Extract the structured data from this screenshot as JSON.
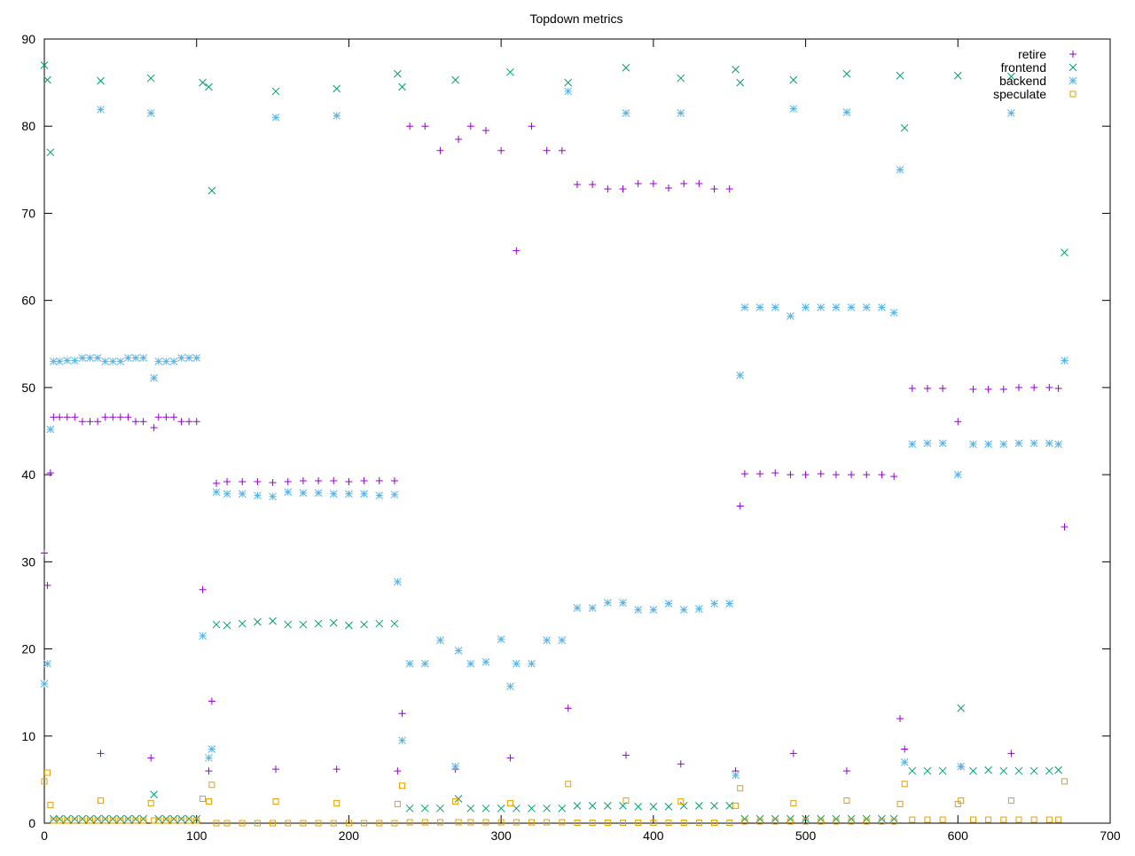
{
  "chart_data": {
    "type": "scatter",
    "title": "Topdown metrics",
    "x": [
      0,
      2,
      4,
      6,
      10,
      15,
      20,
      25,
      30,
      35,
      37,
      40,
      45,
      50,
      55,
      60,
      65,
      70,
      72,
      75,
      80,
      85,
      90,
      95,
      100,
      104,
      108,
      110,
      113,
      120,
      130,
      140,
      150,
      152,
      160,
      170,
      180,
      190,
      192,
      200,
      210,
      220,
      230,
      232,
      235,
      240,
      250,
      260,
      270,
      272,
      280,
      290,
      300,
      306,
      310,
      320,
      330,
      340,
      344,
      350,
      360,
      370,
      380,
      382,
      390,
      400,
      410,
      418,
      420,
      430,
      440,
      450,
      454,
      457,
      460,
      470,
      480,
      490,
      492,
      500,
      510,
      520,
      527,
      530,
      540,
      550,
      558,
      562,
      565,
      570,
      580,
      590,
      600,
      602,
      610,
      620,
      630,
      635,
      640,
      650,
      660,
      666,
      670
    ],
    "series": [
      {
        "name": "retire",
        "color": "#9400d3",
        "marker": "plus",
        "values": [
          31,
          27.3,
          40.2,
          46.6,
          46.6,
          46.6,
          46.6,
          46.1,
          46.1,
          46.1,
          8,
          46.6,
          46.6,
          46.6,
          46.6,
          46.1,
          46.1,
          7.5,
          45.4,
          46.6,
          46.6,
          46.6,
          46.1,
          46.1,
          46.1,
          26.8,
          6,
          14,
          39,
          39.2,
          39.2,
          39.2,
          39.1,
          6.2,
          39.2,
          39.3,
          39.3,
          39.3,
          6.2,
          39.2,
          39.3,
          39.3,
          39.3,
          6,
          12.6,
          80,
          80,
          77.2,
          6.2,
          78.5,
          80,
          79.5,
          77.2,
          7.5,
          65.7,
          80,
          77.2,
          77.2,
          13.2,
          73.3,
          73.3,
          72.8,
          72.8,
          7.8,
          73.4,
          73.4,
          72.9,
          6.8,
          73.4,
          73.4,
          72.8,
          72.8,
          6,
          36.4,
          40.1,
          40.1,
          40.2,
          40,
          8,
          40,
          40.1,
          40,
          6,
          40,
          40,
          40,
          39.8,
          12,
          8.5,
          49.9,
          49.9,
          49.9,
          46.1,
          6.5,
          49.8,
          49.8,
          49.8,
          8,
          50,
          50,
          50,
          49.9,
          34
        ]
      },
      {
        "name": "frontend",
        "color": "#009e73",
        "marker": "cross",
        "values": [
          87,
          85.3,
          77,
          0.5,
          0.5,
          0.5,
          0.5,
          0.5,
          0.5,
          0.5,
          85.2,
          0.5,
          0.5,
          0.5,
          0.5,
          0.5,
          0.5,
          85.5,
          3.3,
          0.5,
          0.5,
          0.5,
          0.5,
          0.5,
          0.5,
          85,
          84.5,
          72.6,
          22.8,
          22.7,
          22.9,
          23.1,
          23.2,
          84,
          22.8,
          22.8,
          22.9,
          23,
          84.3,
          22.7,
          22.8,
          22.9,
          22.9,
          86,
          84.5,
          1.7,
          1.7,
          1.7,
          85.3,
          2.8,
          1.7,
          1.7,
          1.7,
          86.2,
          1.7,
          1.7,
          1.7,
          1.7,
          85,
          2,
          2,
          2,
          2,
          86.7,
          1.9,
          1.9,
          1.9,
          85.5,
          2,
          2,
          2,
          2,
          86.5,
          85,
          0.5,
          0.5,
          0.5,
          0.5,
          85.3,
          0.5,
          0.5,
          0.5,
          86,
          0.5,
          0.5,
          0.5,
          0.5,
          85.8,
          79.8,
          6,
          6,
          6,
          85.8,
          13.2,
          6,
          6.1,
          6,
          85.7,
          6,
          6,
          6,
          6.1,
          65.5
        ]
      },
      {
        "name": "backend",
        "color": "#56b4e9",
        "marker": "star",
        "values": [
          16,
          18.3,
          45.2,
          53,
          53,
          53.1,
          53.1,
          53.4,
          53.4,
          53.4,
          81.9,
          53,
          53,
          53,
          53.4,
          53.4,
          53.4,
          81.5,
          51.1,
          53,
          53,
          53,
          53.4,
          53.4,
          53.4,
          21.5,
          7.5,
          8.5,
          38,
          37.8,
          37.8,
          37.6,
          37.5,
          81,
          38,
          37.9,
          37.9,
          37.8,
          81.2,
          37.8,
          37.8,
          37.6,
          37.7,
          27.7,
          9.5,
          18.3,
          18.3,
          21,
          6.5,
          19.8,
          18.3,
          18.5,
          21.1,
          15.7,
          18.3,
          18.3,
          21,
          21,
          84,
          24.7,
          24.7,
          25.3,
          25.3,
          81.5,
          24.5,
          24.5,
          25.2,
          81.5,
          24.5,
          24.6,
          25.2,
          25.2,
          5.5,
          51.4,
          59.2,
          59.2,
          59.2,
          58.2,
          82,
          59.2,
          59.2,
          59.2,
          81.6,
          59.2,
          59.2,
          59.2,
          58.6,
          75,
          7,
          43.5,
          43.6,
          43.6,
          40,
          6.5,
          43.5,
          43.5,
          43.5,
          81.5,
          43.6,
          43.6,
          43.6,
          43.5,
          53.1
        ]
      },
      {
        "name": "speculate",
        "color": "#e69f00",
        "marker": "square",
        "values": [
          4.8,
          5.8,
          2.1,
          0.3,
          0.3,
          0.3,
          0.3,
          0.3,
          0.3,
          0.3,
          2.6,
          0.3,
          0.3,
          0.3,
          0.3,
          0.3,
          0.3,
          2.3,
          0.3,
          0.3,
          0.3,
          0.3,
          0.3,
          0.3,
          0.3,
          2.8,
          2.5,
          4.4,
          0,
          0,
          0,
          0,
          0,
          2.5,
          0,
          0,
          0,
          0,
          2.3,
          0,
          0,
          0,
          0,
          2.2,
          4.3,
          0.1,
          0.1,
          0.1,
          2.5,
          0.1,
          0.1,
          0.1,
          0.1,
          2.3,
          0.1,
          0.1,
          0.1,
          0.1,
          4.5,
          0.05,
          0.05,
          0.05,
          0.05,
          2.6,
          0.05,
          0.05,
          0.05,
          2.5,
          0.05,
          0.05,
          0.05,
          0.05,
          2,
          4,
          0.2,
          0.2,
          0.2,
          0.2,
          2.3,
          0.2,
          0.2,
          0.2,
          2.6,
          0.2,
          0.2,
          0.2,
          0.2,
          2.2,
          4.5,
          0.4,
          0.4,
          0.4,
          2.2,
          2.6,
          0.4,
          0.4,
          0.4,
          2.6,
          0.4,
          0.4,
          0.4,
          0.4,
          4.8
        ]
      }
    ],
    "xlim": [
      0,
      700
    ],
    "xticks": [
      0,
      100,
      200,
      300,
      400,
      500,
      600,
      700
    ],
    "ylim": [
      0,
      90
    ],
    "yticks": [
      0,
      10,
      20,
      30,
      40,
      50,
      60,
      70,
      80,
      90
    ],
    "legend": "top right"
  }
}
